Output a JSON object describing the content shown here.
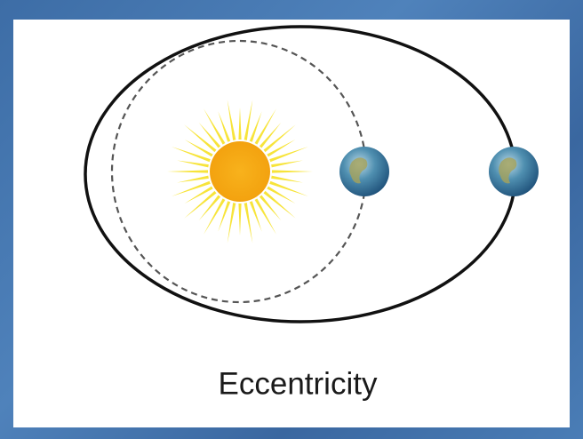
{
  "caption": "Eccentricity"
}
